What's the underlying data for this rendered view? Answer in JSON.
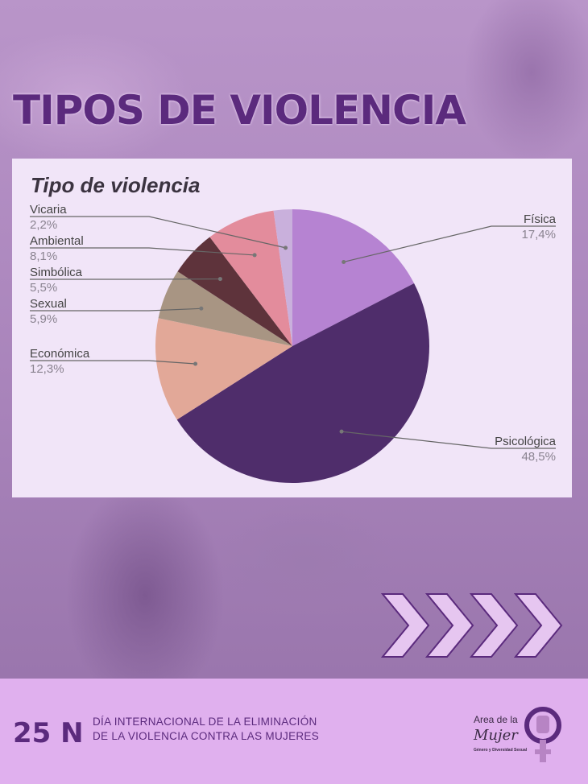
{
  "poster": {
    "title": "TIPOS DE VIOLENCIA"
  },
  "footer": {
    "date": "25 N",
    "line1": "DÍA INTERNACIONAL DE LA ELIMINACIÓN",
    "line2": "DE LA VIOLENCIA CONTRA LAS MUJERES",
    "logo": {
      "line1": "Area de la",
      "line2": "Mujer",
      "subtitle": "Género y Diversidad Sexual"
    }
  },
  "chart_data": {
    "type": "pie",
    "title": "Tipo de violencia",
    "categories": [
      "Física",
      "Psicológica",
      "Económica",
      "Sexual",
      "Simbólica",
      "Ambiental",
      "Vicaria"
    ],
    "values": [
      17.4,
      48.5,
      12.3,
      5.9,
      5.5,
      8.1,
      2.2
    ],
    "labels": [
      "17,4%",
      "48,5%",
      "12,3%",
      "5,9%",
      "5,5%",
      "8,1%",
      "2,2%"
    ],
    "colors": [
      "#b683d2",
      "#4f2d6b",
      "#e2a898",
      "#a89583",
      "#5e333b",
      "#e38c9c",
      "#c9b0dc"
    ],
    "legend": "outside labels with leader lines"
  }
}
